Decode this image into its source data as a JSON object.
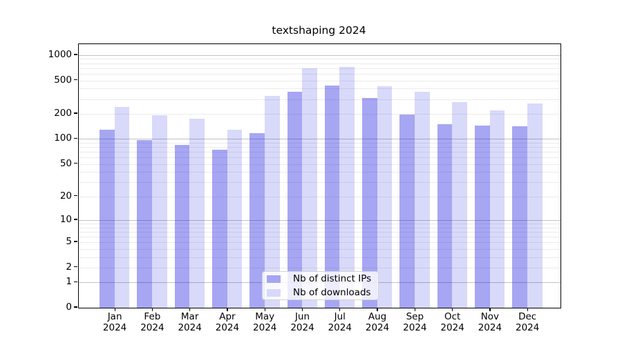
{
  "title": "textshaping 2024",
  "colors": {
    "bar_ips": "rgba(0,0,220,0.35)",
    "bar_downloads": "rgba(0,0,220,0.15)",
    "bar_ips_solid": "#a5a5f3",
    "bar_downloads_solid": "#d8d8fa",
    "grid_major": "#c2c2c2",
    "grid_minor": "#ebebeb",
    "axis": "#000000"
  },
  "legend": {
    "position": "lower center",
    "items": [
      {
        "label": "Nb of distinct IPs"
      },
      {
        "label": "Nb of downloads"
      }
    ]
  },
  "chart_data": {
    "type": "bar",
    "title": "textshaping 2024",
    "categories": [
      "Jan",
      "Feb",
      "Mar",
      "Apr",
      "May",
      "Jun",
      "Jul",
      "Aug",
      "Sep",
      "Oct",
      "Nov",
      "Dec"
    ],
    "year": "2024",
    "series": [
      {
        "name": "Nb of distinct IPs",
        "values": [
          130,
          98,
          85,
          74,
          118,
          370,
          433,
          310,
          197,
          150,
          146,
          141
        ]
      },
      {
        "name": "Nb of downloads",
        "values": [
          243,
          193,
          176,
          130,
          330,
          695,
          725,
          430,
          370,
          278,
          220,
          266
        ]
      }
    ],
    "xlabel": "",
    "ylabel": "",
    "yscale": "log1p",
    "ylim": [
      0,
      1350
    ],
    "y_ticks": [
      0,
      1,
      2,
      5,
      10,
      20,
      50,
      100,
      200,
      500,
      1000
    ],
    "y_major_gridlines": [
      1,
      10,
      100,
      1000
    ],
    "grid": true,
    "legend_position": "lower center"
  }
}
